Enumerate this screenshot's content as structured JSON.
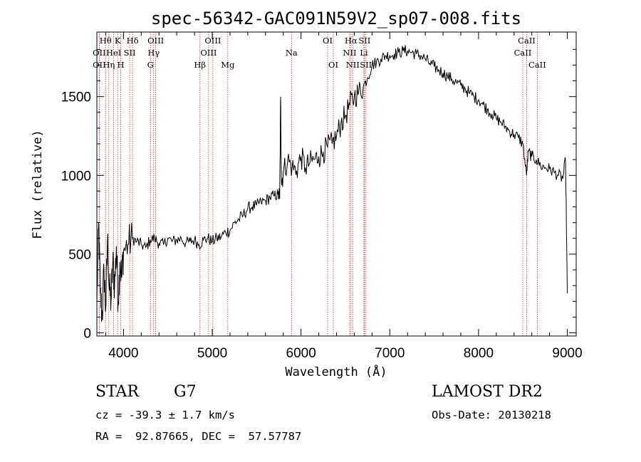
{
  "chart_data": {
    "type": "line",
    "title": "spec-56342-GAC091N59V2_sp07-008.fits",
    "xlabel": "Wavelength (Å)",
    "ylabel": "Flux (relative)",
    "xlim": [
      3700,
      9100
    ],
    "ylim": [
      -20,
      1910
    ],
    "x_ticks": [
      4000,
      5000,
      6000,
      7000,
      8000,
      9000
    ],
    "y_ticks": [
      0,
      500,
      1000,
      1500
    ],
    "line_color": "#000000",
    "marker_color": "#cc3333",
    "series": [
      {
        "x": [
          3700,
          3720,
          3740,
          3760,
          3780,
          3800,
          3820,
          3840,
          3860,
          3880,
          3900,
          3920,
          3940,
          3960,
          3980,
          4000,
          4050,
          4100,
          4150,
          4200,
          4250,
          4300,
          4350,
          4400,
          4450,
          4500,
          4550,
          4600,
          4650,
          4700,
          4750,
          4800,
          4850,
          4900,
          4950,
          5000,
          5050,
          5100,
          5150,
          5200,
          5250,
          5300,
          5350,
          5400,
          5450,
          5500,
          5550,
          5600,
          5650,
          5700,
          5740,
          5760,
          5770,
          5780,
          5800,
          5850,
          5900,
          5950,
          6000,
          6050,
          6100,
          6150,
          6200,
          6250,
          6300,
          6350,
          6400,
          6450,
          6500,
          6550,
          6600,
          6650,
          6700,
          6750,
          6800,
          6850,
          6900,
          6950,
          7000,
          7050,
          7100,
          7150,
          7200,
          7250,
          7300,
          7350,
          7400,
          7450,
          7500,
          7550,
          7600,
          7650,
          7700,
          7750,
          7800,
          7850,
          7900,
          7950,
          8000,
          8050,
          8100,
          8150,
          8200,
          8250,
          8300,
          8350,
          8400,
          8450,
          8500,
          8540,
          8560,
          8600,
          8650,
          8700,
          8750,
          8800,
          8850,
          8900,
          8950,
          8980,
          9000
        ],
        "y": [
          180,
          700,
          250,
          100,
          400,
          150,
          600,
          280,
          200,
          450,
          300,
          550,
          200,
          450,
          350,
          520,
          560,
          600,
          580,
          560,
          540,
          590,
          600,
          570,
          560,
          600,
          580,
          590,
          600,
          570,
          580,
          590,
          560,
          590,
          600,
          580,
          600,
          610,
          640,
          650,
          700,
          720,
          750,
          790,
          800,
          810,
          830,
          840,
          860,
          870,
          880,
          850,
          1500,
          950,
          1020,
          1100,
          1050,
          1030,
          1120,
          1050,
          1080,
          1100,
          1120,
          1150,
          1180,
          1200,
          1250,
          1330,
          1380,
          1450,
          1500,
          1530,
          1560,
          1620,
          1700,
          1720,
          1740,
          1760,
          1760,
          1770,
          1780,
          1790,
          1790,
          1780,
          1770,
          1760,
          1740,
          1710,
          1690,
          1670,
          1650,
          1630,
          1610,
          1590,
          1570,
          1550,
          1520,
          1500,
          1480,
          1450,
          1420,
          1390,
          1360,
          1340,
          1310,
          1280,
          1260,
          1240,
          1200,
          1000,
          1150,
          1120,
          1100,
          1060,
          1050,
          1040,
          1020,
          1000,
          980,
          1100,
          250
        ]
      }
    ],
    "spectral_lines": [
      {
        "label": "Hθ",
        "x": 3798,
        "row": 0
      },
      {
        "label": "K",
        "x": 3934,
        "row": 0
      },
      {
        "label": "Hδ",
        "x": 4102,
        "row": 0
      },
      {
        "label": "OIII",
        "x": 4363,
        "row": 0
      },
      {
        "label": "OIII",
        "x": 5007,
        "row": 0
      },
      {
        "label": "OI",
        "x": 6300,
        "row": 0
      },
      {
        "label": "Hα",
        "x": 6563,
        "row": 0
      },
      {
        "label": "SII",
        "x": 6716,
        "row": 0
      },
      {
        "label": "CaII",
        "x": 8542,
        "row": 0
      },
      {
        "label": "OII",
        "x": 3727,
        "row": 1
      },
      {
        "label": "HeI",
        "x": 3889,
        "row": 1
      },
      {
        "label": "SII",
        "x": 4070,
        "row": 1
      },
      {
        "label": "Hγ",
        "x": 4340,
        "row": 1
      },
      {
        "label": "OIII",
        "x": 4959,
        "row": 1
      },
      {
        "label": "Na",
        "x": 5893,
        "row": 1
      },
      {
        "label": "NII",
        "x": 6548,
        "row": 1
      },
      {
        "label": "Li",
        "x": 6708,
        "row": 1
      },
      {
        "label": "CaII",
        "x": 8498,
        "row": 1
      },
      {
        "label": "OII",
        "x": 3727,
        "row": 2
      },
      {
        "label": "Hη",
        "x": 3835,
        "row": 2
      },
      {
        "label": "H",
        "x": 3969,
        "row": 2
      },
      {
        "label": "G",
        "x": 4304,
        "row": 2
      },
      {
        "label": "Hβ",
        "x": 4861,
        "row": 2
      },
      {
        "label": "Mg",
        "x": 5175,
        "row": 2
      },
      {
        "label": "OI",
        "x": 6364,
        "row": 2
      },
      {
        "label": "NII",
        "x": 6583,
        "row": 2
      },
      {
        "label": "SII",
        "x": 6731,
        "row": 2
      },
      {
        "label": "CaII",
        "x": 8662,
        "row": 2
      }
    ]
  },
  "info": {
    "object_class": "STAR",
    "subclass": "G7",
    "survey": "LAMOST DR2",
    "cz_line": "cz = -39.3 ± 1.7 km/s",
    "obs_date": "Obs-Date: 20130218",
    "coords": "RA =  92.87665, DEC =  57.57787"
  }
}
